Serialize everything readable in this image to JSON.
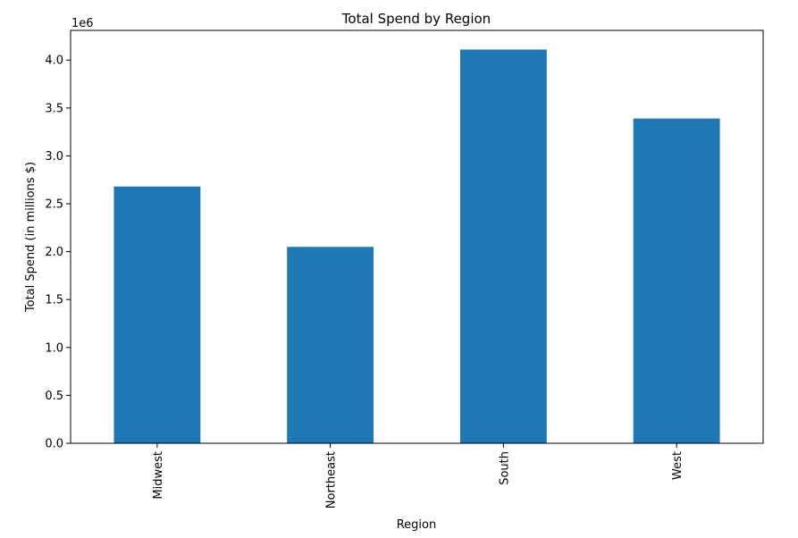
{
  "chart_data": {
    "type": "bar",
    "title": "Total Spend by Region",
    "xlabel": "Region",
    "ylabel": "Total Spend (in millions $)",
    "y_offset_label": "1e6",
    "categories": [
      "Midwest",
      "Northeast",
      "South",
      "West"
    ],
    "values": [
      2680000,
      2050000,
      4110000,
      3390000
    ],
    "ylim": [
      0,
      4310000
    ],
    "yticks": [
      0,
      0.5,
      1.0,
      1.5,
      2.0,
      2.5,
      3.0,
      3.5,
      4.0
    ],
    "ytick_labels": [
      "0.0",
      "0.5",
      "1.0",
      "1.5",
      "2.0",
      "2.5",
      "3.0",
      "3.5",
      "4.0"
    ],
    "bar_color": "#1f77b4",
    "grid": false,
    "legend": "none"
  }
}
